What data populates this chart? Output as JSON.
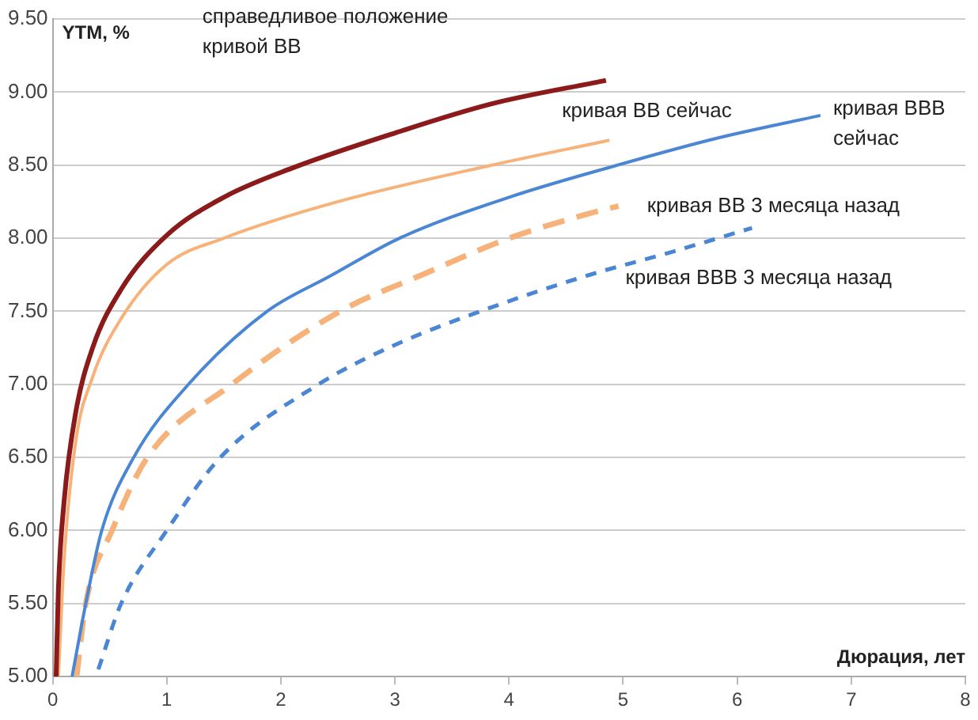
{
  "chart_data": {
    "type": "line",
    "xlabel": "Дюрация, лет",
    "ylabel": "YTM, %",
    "xlim": [
      0,
      8
    ],
    "xticks": [
      0,
      1,
      2,
      3,
      4,
      5,
      6,
      7,
      8
    ],
    "ylim": [
      5,
      9.5
    ],
    "yticks": [
      {
        "value": 5,
        "label": "5.00"
      },
      {
        "value": 5.5,
        "label": "5.50"
      },
      {
        "value": 6,
        "label": "6.00"
      },
      {
        "value": 6.5,
        "label": "6.50"
      },
      {
        "value": 7,
        "label": "7.00"
      },
      {
        "value": 7.5,
        "label": "7.50"
      },
      {
        "value": 8,
        "label": "8.00"
      },
      {
        "value": 8.5,
        "label": "8.50"
      },
      {
        "value": 9,
        "label": "9.00"
      },
      {
        "value": 9.5,
        "label": "9.50"
      }
    ],
    "grid": "y",
    "legend": false,
    "marker": "none",
    "line_style": "solid",
    "series": [
      {
        "name": "справедливое положение кривой BB",
        "color": "#8b1a1a",
        "x": [
          0.03,
          0.05,
          0.1,
          0.2,
          0.35,
          0.6,
          1.0,
          1.5,
          2.1,
          3.0,
          3.85,
          4.85
        ],
        "values": [
          5.0,
          5.6,
          6.2,
          6.8,
          7.25,
          7.65,
          8.02,
          8.28,
          8.48,
          8.72,
          8.92,
          9.08
        ]
      },
      {
        "name": "кривая BB сейчас",
        "color": "#f7b27a",
        "x": [
          0.05,
          0.1,
          0.2,
          0.35,
          0.6,
          1.0,
          1.5,
          2.5,
          3.85,
          4.88
        ],
        "values": [
          5.0,
          5.8,
          6.6,
          7.05,
          7.45,
          7.82,
          8.0,
          8.25,
          8.5,
          8.67
        ]
      },
      {
        "name": "кривая BBB сейчас",
        "color": "#4a86d4",
        "x": [
          0.17,
          0.29,
          0.43,
          0.71,
          1.19,
          1.88,
          2.43,
          3.04,
          4.0,
          4.95,
          5.8,
          6.73
        ],
        "values": [
          5.0,
          5.5,
          6.0,
          6.5,
          7.0,
          7.5,
          7.74,
          8.0,
          8.28,
          8.5,
          8.68,
          8.84
        ]
      },
      {
        "name": "кривая BB 3 месяца назад",
        "color": "#f7b27a",
        "line_style": "dashed",
        "x": [
          0.21,
          0.29,
          0.52,
          0.83,
          1.57,
          2.52,
          3.24,
          4.0,
          4.71,
          4.96
        ],
        "values": [
          5.0,
          5.5,
          6.0,
          6.5,
          7.0,
          7.5,
          7.75,
          8.0,
          8.17,
          8.22
        ]
      },
      {
        "name": "кривая BBB 3 месяца назад",
        "color": "#4a86d4",
        "line_style": "dashed",
        "x": [
          0.4,
          0.6,
          1.0,
          1.47,
          2.33,
          3.0,
          3.75,
          4.71,
          5.4,
          6.13
        ],
        "values": [
          5.05,
          5.5,
          6.0,
          6.5,
          7.0,
          7.27,
          7.5,
          7.75,
          7.9,
          8.07
        ]
      }
    ]
  }
}
